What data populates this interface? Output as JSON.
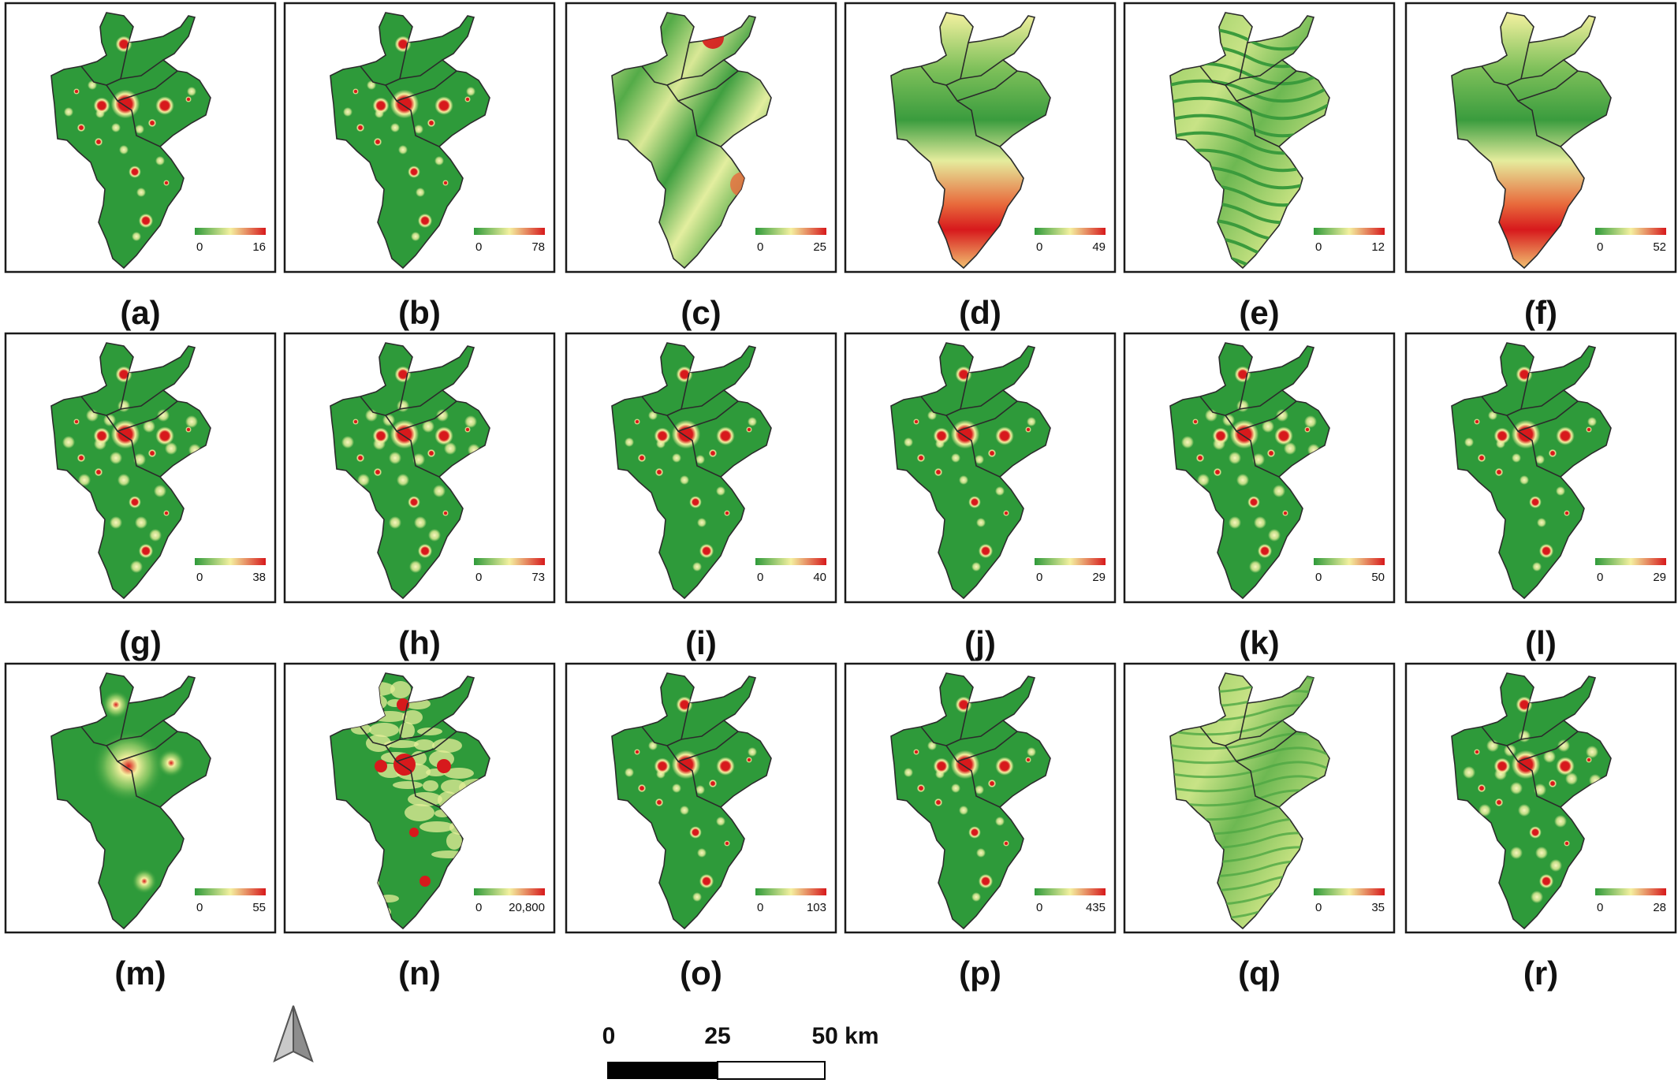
{
  "panels": [
    {
      "label": "(a)",
      "legend_min": "0",
      "legend_max": "16",
      "pattern": "hotspots",
      "hotspot_intensity": 0.9
    },
    {
      "label": "(b)",
      "legend_min": "0",
      "legend_max": "78",
      "pattern": "hotspots",
      "hotspot_intensity": 0.8
    },
    {
      "label": "(c)",
      "legend_min": "0",
      "legend_max": "25",
      "pattern": "gradient-bands"
    },
    {
      "label": "(d)",
      "legend_min": "0",
      "legend_max": "49",
      "pattern": "south-high"
    },
    {
      "label": "(e)",
      "legend_min": "0",
      "legend_max": "12",
      "pattern": "terrain-veins"
    },
    {
      "label": "(f)",
      "legend_min": "0",
      "legend_max": "52",
      "pattern": "south-high"
    },
    {
      "label": "(g)",
      "legend_min": "0",
      "legend_max": "38",
      "pattern": "hotspots-dense"
    },
    {
      "label": "(h)",
      "legend_min": "0",
      "legend_max": "73",
      "pattern": "hotspots-dense"
    },
    {
      "label": "(i)",
      "legend_min": "0",
      "legend_max": "40",
      "pattern": "hotspots"
    },
    {
      "label": "(j)",
      "legend_min": "0",
      "legend_max": "29",
      "pattern": "hotspots"
    },
    {
      "label": "(k)",
      "legend_min": "0",
      "legend_max": "50",
      "pattern": "hotspots-dense"
    },
    {
      "label": "(l)",
      "legend_min": "0",
      "legend_max": "29",
      "pattern": "hotspots"
    },
    {
      "label": "(m)",
      "legend_min": "0",
      "legend_max": "55",
      "pattern": "center-glow"
    },
    {
      "label": "(n)",
      "legend_min": "0",
      "legend_max": "20,800",
      "pattern": "patchy"
    },
    {
      "label": "(o)",
      "legend_min": "0",
      "legend_max": "103",
      "pattern": "hotspots"
    },
    {
      "label": "(p)",
      "legend_min": "0",
      "legend_max": "435",
      "pattern": "hotspots"
    },
    {
      "label": "(q)",
      "legend_min": "0",
      "legend_max": "35",
      "pattern": "terrain-texture"
    },
    {
      "label": "(r)",
      "legend_min": "0",
      "legend_max": "28",
      "pattern": "hotspots-dense"
    }
  ],
  "colors": {
    "low": "#2e9a3a",
    "mid": "#f4f1a0",
    "high": "#d7191c",
    "frame": "#1a1a1a"
  },
  "scale_bar": {
    "tick_0": "0",
    "tick_1": "25",
    "tick_2": "50 km"
  },
  "north_arrow_icon": "north-arrow-icon"
}
